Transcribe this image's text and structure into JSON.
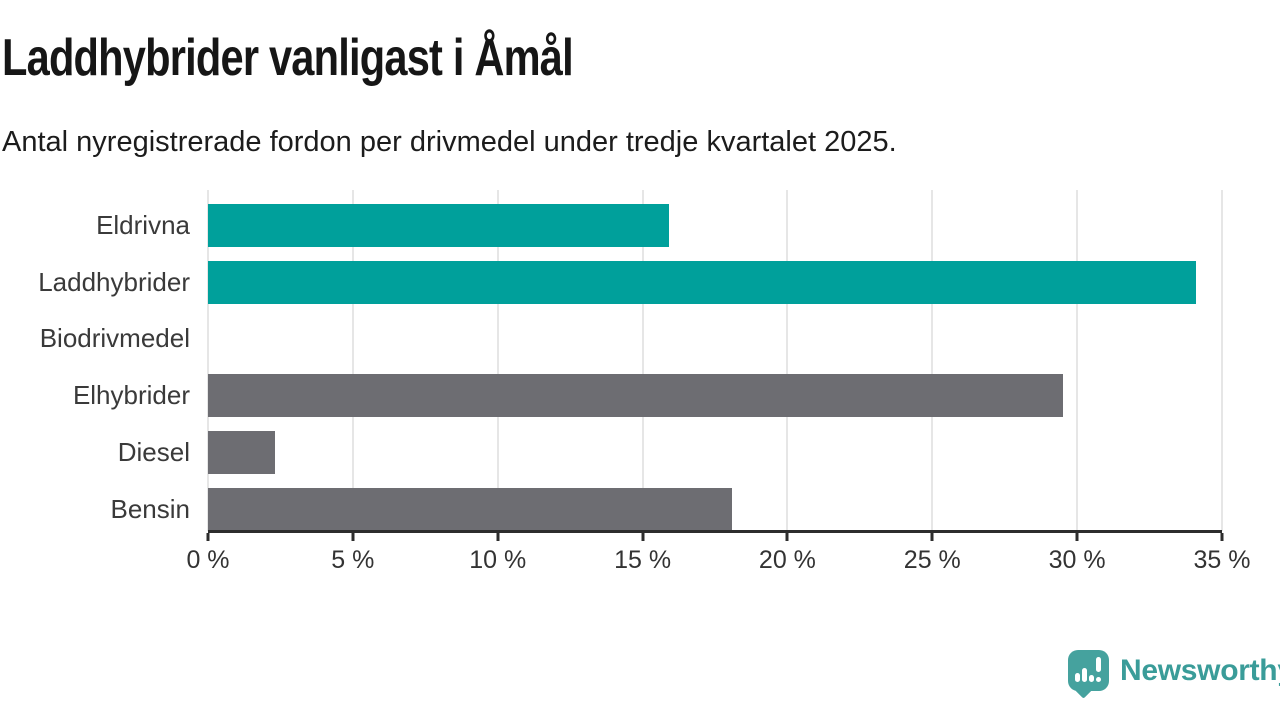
{
  "chart_data": {
    "type": "bar",
    "orientation": "horizontal",
    "title": "Laddhybrider vanligast i Åmål",
    "subtitle": "Antal nyregistrerade fordon per drivmedel under tredje kvartalet 2025.",
    "categories": [
      "Eldrivna",
      "Laddhybrider",
      "Biodrivmedel",
      "Elhybrider",
      "Diesel",
      "Bensin"
    ],
    "values": [
      15.9,
      34.1,
      0,
      29.5,
      2.3,
      18.1
    ],
    "unit": "%",
    "bar_colors": [
      "#00a09b",
      "#00a09b",
      "#00a09b",
      "#6d6d72",
      "#6d6d72",
      "#6d6d72"
    ],
    "xlim": [
      0,
      35
    ],
    "x_tick_values": [
      0,
      5,
      10,
      15,
      20,
      25,
      30,
      35
    ],
    "x_tick_labels": [
      "0 %",
      "5 %",
      "10 %",
      "15 %",
      "20 %",
      "25 %",
      "30 %",
      "35 %"
    ],
    "grid": "vertical-gridlines",
    "legend": "none",
    "xlabel": "",
    "ylabel": ""
  },
  "branding": {
    "wordmark": "Newsworthy",
    "icon": "newsworthy-speech-bubble-bar-chart-icon",
    "brand_color": "#3a9c99"
  },
  "colors": {
    "background": "#ffffff",
    "teal_bar": "#00a09b",
    "gray_bar": "#6d6d72",
    "gridline": "#e6e6e6",
    "axis": "#2d2d2d",
    "title_text": "#161616",
    "label_text": "#3a3a3a"
  }
}
